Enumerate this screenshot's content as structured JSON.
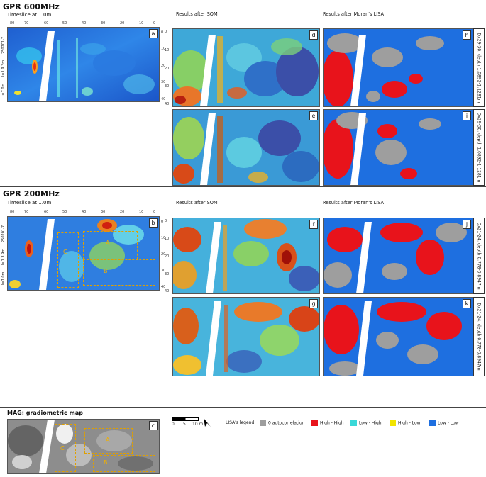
{
  "sections": {
    "gpr600": {
      "title": "GPR 600MHz",
      "timeslice": "Timeslice at 1.0m",
      "som": "Results after SOM",
      "lisa": "Results after Moran's LISA"
    },
    "gpr200": {
      "title": "GPR 200MHz",
      "timeslice": "Timeslice at 1.0m",
      "som": "Results after SOM",
      "lisa": "Results after Moran's LISA"
    },
    "mag": {
      "title": "MAG: gradiometric map"
    }
  },
  "panel_letters": {
    "a": "a",
    "b": "b",
    "c": "c",
    "d": "d",
    "e": "e",
    "f": "f",
    "g": "g",
    "h": "h",
    "i": "i",
    "j": "j",
    "k": "k"
  },
  "strips": {
    "h": "Dx29-30: depth 1.0892-1.1281m",
    "i": "Dx29-30: depth 1.0892-1.1281m",
    "j": "Dx21-24: depth 0.778-0.8947m",
    "k": "Dx21-24: depth 0.778-0.8947m"
  },
  "axes": {
    "x_ticks": [
      "80",
      "70",
      "60",
      "50",
      "40",
      "30",
      "20",
      "10",
      "0"
    ],
    "y_ticks": [
      "0",
      "10",
      "20",
      "30",
      "40"
    ],
    "side_labels_a": [
      "250201-7",
      "l=1.9 3m",
      "l=7 0m"
    ],
    "side_labels_b": [
      "250201-7",
      "l=1.3 9m",
      "l=7 0m"
    ]
  },
  "zones": {
    "A": "A",
    "B": "B",
    "C": "C"
  },
  "scale": {
    "ticks": [
      "0",
      "5",
      "10 m"
    ]
  },
  "legend": {
    "title": "LISA's legend",
    "items": [
      {
        "label": "0 autocorrelation",
        "color": "#9e9e9e"
      },
      {
        "label": "High - High",
        "color": "#e8131b"
      },
      {
        "label": "Low - High",
        "color": "#3ad8d8"
      },
      {
        "label": "High - Low",
        "color": "#f2e400"
      },
      {
        "label": "Low - Low",
        "color": "#1e6fe0"
      }
    ]
  }
}
